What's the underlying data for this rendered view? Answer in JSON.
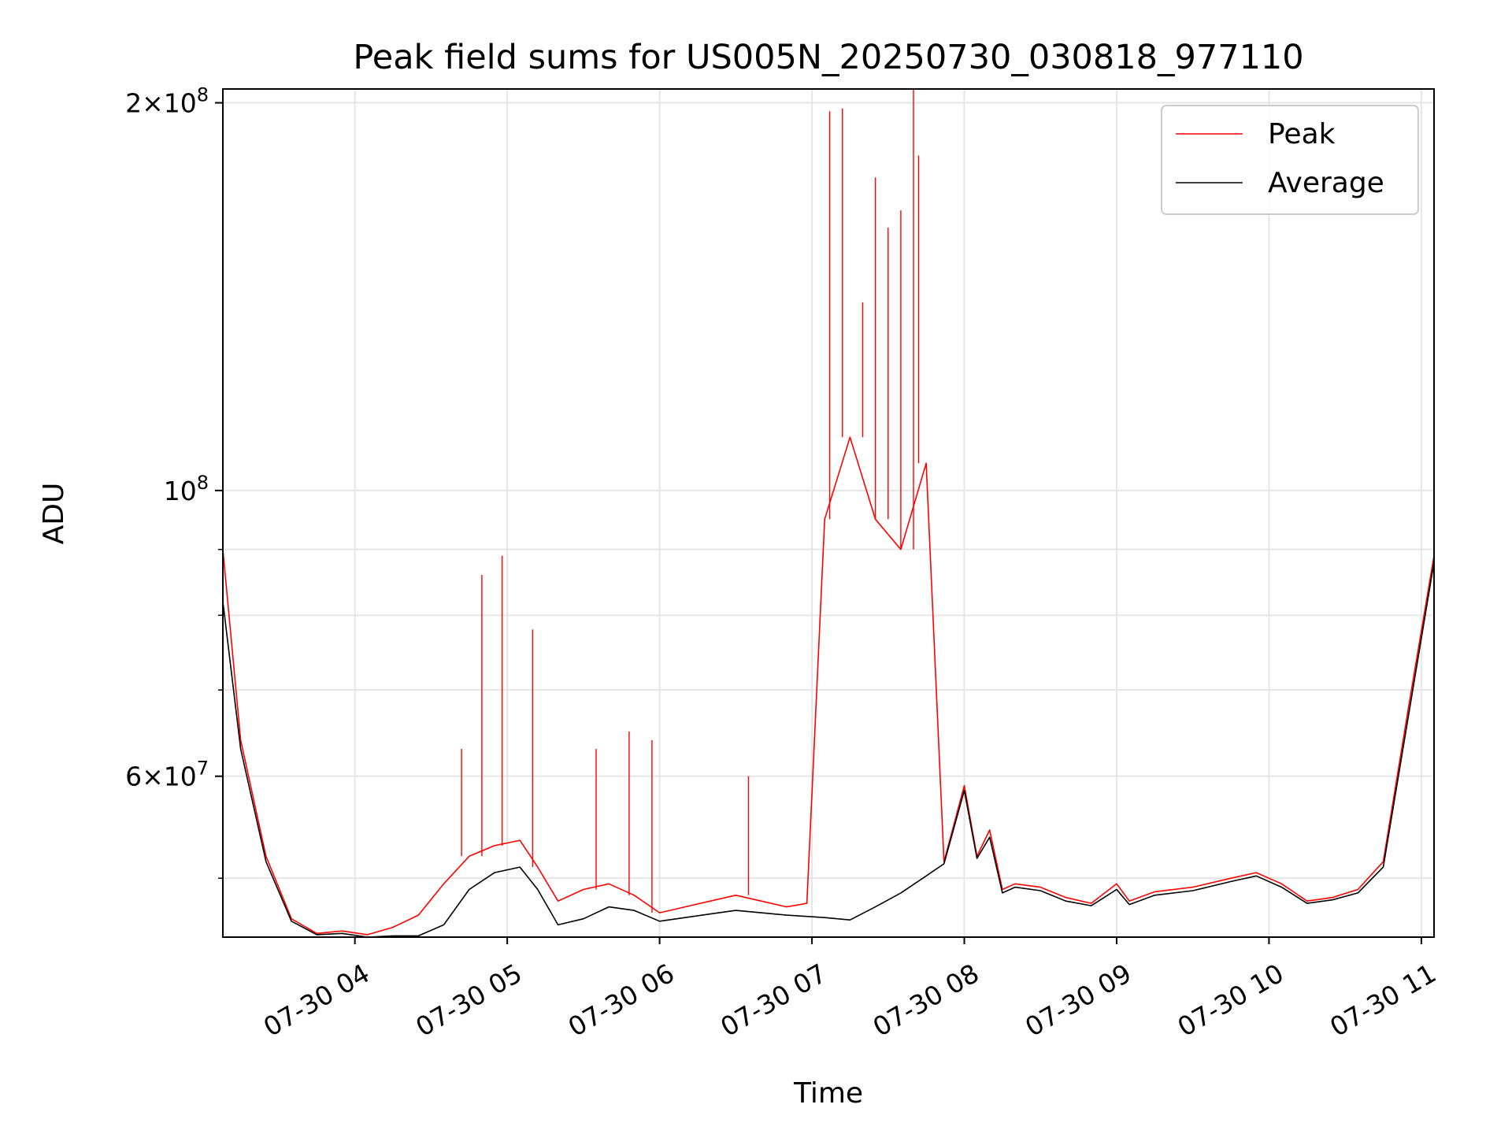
{
  "chart_data": {
    "type": "line",
    "title": "Peak field sums for US005N_20250730_030818_977110",
    "xlabel": "Time",
    "ylabel": "ADU",
    "yscale": "log",
    "xlim": [
      "2025-07-30 03:08",
      "2025-07-30 11:05"
    ],
    "ylim": [
      45000000,
      205000000
    ],
    "grid": true,
    "legend": {
      "position": "top-right"
    },
    "x_ticks": [
      {
        "value": "2025-07-30 04:00",
        "label": "07-30 04"
      },
      {
        "value": "2025-07-30 05:00",
        "label": "07-30 05"
      },
      {
        "value": "2025-07-30 06:00",
        "label": "07-30 06"
      },
      {
        "value": "2025-07-30 07:00",
        "label": "07-30 07"
      },
      {
        "value": "2025-07-30 08:00",
        "label": "07-30 08"
      },
      {
        "value": "2025-07-30 09:00",
        "label": "07-30 09"
      },
      {
        "value": "2025-07-30 10:00",
        "label": "07-30 10"
      },
      {
        "value": "2025-07-30 11:00",
        "label": "07-30 11"
      }
    ],
    "y_ticks": [
      {
        "value": 60000000,
        "mantissa": "6",
        "exponent": "7"
      },
      {
        "value": 100000000,
        "mantissa": "",
        "exponent": "8"
      },
      {
        "value": 200000000,
        "mantissa": "2",
        "exponent": "8"
      }
    ],
    "y_minor_ticks": [
      50000000,
      70000000,
      80000000,
      90000000
    ],
    "series": [
      {
        "name": "Peak",
        "color": "#ff0000",
        "x": [
          "2025-07-30 03:08",
          "2025-07-30 03:15",
          "2025-07-30 03:25",
          "2025-07-30 03:35",
          "2025-07-30 03:45",
          "2025-07-30 03:55",
          "2025-07-30 04:05",
          "2025-07-30 04:15",
          "2025-07-30 04:25",
          "2025-07-30 04:35",
          "2025-07-30 04:45",
          "2025-07-30 04:55",
          "2025-07-30 05:05",
          "2025-07-30 05:12",
          "2025-07-30 05:20",
          "2025-07-30 05:30",
          "2025-07-30 05:40",
          "2025-07-30 05:50",
          "2025-07-30 06:00",
          "2025-07-30 06:10",
          "2025-07-30 06:20",
          "2025-07-30 06:30",
          "2025-07-30 06:40",
          "2025-07-30 06:50",
          "2025-07-30 06:58",
          "2025-07-30 07:05",
          "2025-07-30 07:15",
          "2025-07-30 07:25",
          "2025-07-30 07:35",
          "2025-07-30 07:45",
          "2025-07-30 07:52",
          "2025-07-30 08:00",
          "2025-07-30 08:05",
          "2025-07-30 08:10",
          "2025-07-30 08:15",
          "2025-07-30 08:20",
          "2025-07-30 08:30",
          "2025-07-30 08:40",
          "2025-07-30 08:50",
          "2025-07-30 09:00",
          "2025-07-30 09:05",
          "2025-07-30 09:15",
          "2025-07-30 09:30",
          "2025-07-30 09:45",
          "2025-07-30 09:55",
          "2025-07-30 10:05",
          "2025-07-30 10:15",
          "2025-07-30 10:25",
          "2025-07-30 10:35",
          "2025-07-30 10:45",
          "2025-07-30 10:55",
          "2025-07-30 11:05"
        ],
        "y": [
          90000000,
          64000000,
          52000000,
          46500000,
          45300000,
          45500000,
          45200000,
          45800000,
          46800000,
          49500000,
          52000000,
          53000000,
          53500000,
          51000000,
          48000000,
          49000000,
          49500000,
          48500000,
          47000000,
          47500000,
          48000000,
          48500000,
          48000000,
          47500000,
          47800000,
          95000000,
          110000000,
          95000000,
          90000000,
          105000000,
          51500000,
          59000000,
          52000000,
          54500000,
          49000000,
          49500000,
          49200000,
          48300000,
          47800000,
          49500000,
          48000000,
          48800000,
          49200000,
          50000000,
          50500000,
          49500000,
          48000000,
          48300000,
          49000000,
          51500000,
          68000000,
          89000000
        ],
        "spikes": [
          {
            "x": "2025-07-30 04:50",
            "y": 86000000
          },
          {
            "x": "2025-07-30 04:58",
            "y": 89000000
          },
          {
            "x": "2025-07-30 05:10",
            "y": 78000000
          },
          {
            "x": "2025-07-30 04:42",
            "y": 63000000
          },
          {
            "x": "2025-07-30 05:35",
            "y": 63000000
          },
          {
            "x": "2025-07-30 05:48",
            "y": 65000000
          },
          {
            "x": "2025-07-30 05:57",
            "y": 64000000
          },
          {
            "x": "2025-07-30 06:35",
            "y": 60000000
          },
          {
            "x": "2025-07-30 07:07",
            "y": 197000000
          },
          {
            "x": "2025-07-30 07:12",
            "y": 198000000
          },
          {
            "x": "2025-07-30 07:20",
            "y": 140000000
          },
          {
            "x": "2025-07-30 07:25",
            "y": 175000000
          },
          {
            "x": "2025-07-30 07:30",
            "y": 160000000
          },
          {
            "x": "2025-07-30 07:35",
            "y": 165000000
          },
          {
            "x": "2025-07-30 07:40",
            "y": 205000000
          },
          {
            "x": "2025-07-30 07:42",
            "y": 182000000
          }
        ]
      },
      {
        "name": "Average",
        "color": "#000000",
        "x": [
          "2025-07-30 03:08",
          "2025-07-30 03:15",
          "2025-07-30 03:25",
          "2025-07-30 03:35",
          "2025-07-30 03:45",
          "2025-07-30 03:55",
          "2025-07-30 04:05",
          "2025-07-30 04:15",
          "2025-07-30 04:25",
          "2025-07-30 04:35",
          "2025-07-30 04:45",
          "2025-07-30 04:55",
          "2025-07-30 05:05",
          "2025-07-30 05:12",
          "2025-07-30 05:20",
          "2025-07-30 05:30",
          "2025-07-30 05:40",
          "2025-07-30 05:50",
          "2025-07-30 06:00",
          "2025-07-30 06:10",
          "2025-07-30 06:20",
          "2025-07-30 06:30",
          "2025-07-30 06:40",
          "2025-07-30 06:50",
          "2025-07-30 06:58",
          "2025-07-30 07:05",
          "2025-07-30 07:15",
          "2025-07-30 07:25",
          "2025-07-30 07:35",
          "2025-07-30 07:45",
          "2025-07-30 07:52",
          "2025-07-30 08:00",
          "2025-07-30 08:05",
          "2025-07-30 08:10",
          "2025-07-30 08:15",
          "2025-07-30 08:20",
          "2025-07-30 08:30",
          "2025-07-30 08:40",
          "2025-07-30 08:50",
          "2025-07-30 09:00",
          "2025-07-30 09:05",
          "2025-07-30 09:15",
          "2025-07-30 09:30",
          "2025-07-30 09:45",
          "2025-07-30 09:55",
          "2025-07-30 10:05",
          "2025-07-30 10:15",
          "2025-07-30 10:25",
          "2025-07-30 10:35",
          "2025-07-30 10:45",
          "2025-07-30 10:55",
          "2025-07-30 11:05"
        ],
        "y": [
          82000000,
          63000000,
          51500000,
          46300000,
          45200000,
          45300000,
          45000000,
          45100000,
          45100000,
          46000000,
          49000000,
          50500000,
          51000000,
          49000000,
          46000000,
          46500000,
          47500000,
          47200000,
          46300000,
          46600000,
          46900000,
          47200000,
          47000000,
          46800000,
          46700000,
          46600000,
          46400000,
          47500000,
          48700000,
          50200000,
          51300000,
          58500000,
          51800000,
          53800000,
          48700000,
          49200000,
          48900000,
          48000000,
          47600000,
          49000000,
          47700000,
          48500000,
          48900000,
          49700000,
          50200000,
          49200000,
          47800000,
          48100000,
          48700000,
          51000000,
          67000000,
          88000000
        ]
      }
    ]
  }
}
